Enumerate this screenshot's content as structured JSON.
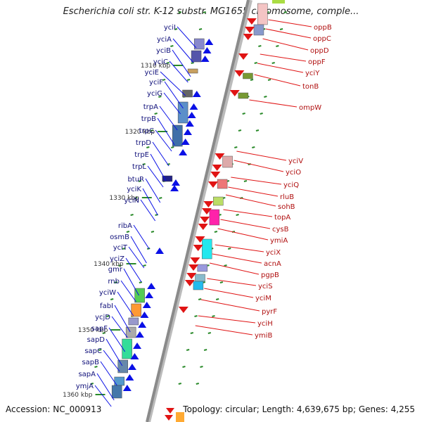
{
  "title": "Escherichia coli str. K-12 substr. MG1655 chromosome, comple...",
  "footer": {
    "accession_label": "Accession:",
    "accession": "NC_000913",
    "topology_label": "Topology:",
    "topology": "circular",
    "length_label": "Length:",
    "length": "4,639,675 bp",
    "genes_label": "Genes:",
    "genes": "4,255"
  },
  "colors": {
    "backbone": "#8a8a8a",
    "forward_strand": "#0a10e6",
    "reverse_strand": "#e01414",
    "tick": "#2a8a2a",
    "label_forward": "#10107a",
    "label_reverse": "#b01010"
  },
  "position_markers": [
    "1310 kbp",
    "1320 kbp",
    "1330 kbp",
    "1340 kbp",
    "1350 kbp",
    "1360 kbp"
  ],
  "genes_left": [
    "yciI",
    "yciA",
    "yciB",
    "yciC",
    "yciE",
    "yciF",
    "yciG",
    "trpA",
    "trpB",
    "trpC",
    "trpD",
    "trpE",
    "trpL",
    "btuR",
    "yciK",
    "yciN",
    "ribA",
    "osmB",
    "yciT",
    "yciZ",
    "gmr",
    "rnb",
    "yciW",
    "fabI",
    "ycjD",
    "sapF",
    "sapD",
    "sapC",
    "sapB",
    "sapA",
    "ymjA"
  ],
  "genes_right": [
    "oppB",
    "oppC",
    "oppD",
    "oppF",
    "yciY",
    "tonB",
    "ompW",
    "yciV",
    "yciO",
    "yciQ",
    "rluB",
    "sohB",
    "topA",
    "cysB",
    "ymiA",
    "yciX",
    "acnA",
    "pgpB",
    "yciS",
    "yciM",
    "pyrF",
    "yciH",
    "ymiB"
  ]
}
